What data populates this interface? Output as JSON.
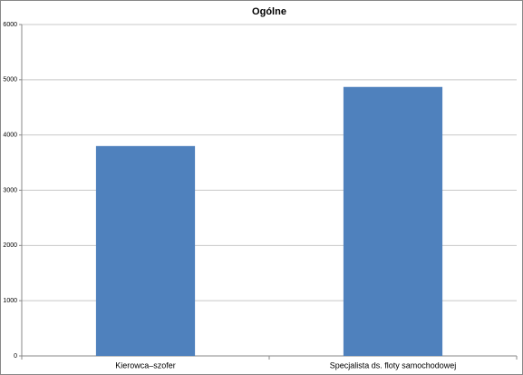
{
  "chart_data": {
    "type": "bar",
    "title": "Ogólne",
    "categories": [
      "Kierowca–szofer",
      "Specjalista ds. floty samochodowej"
    ],
    "values": [
      3800,
      4870
    ],
    "color": "#4f81bd",
    "ylim": [
      0,
      6000
    ],
    "yticks": [
      0,
      1000,
      2000,
      3000,
      4000,
      5000,
      6000
    ],
    "grid": true
  }
}
